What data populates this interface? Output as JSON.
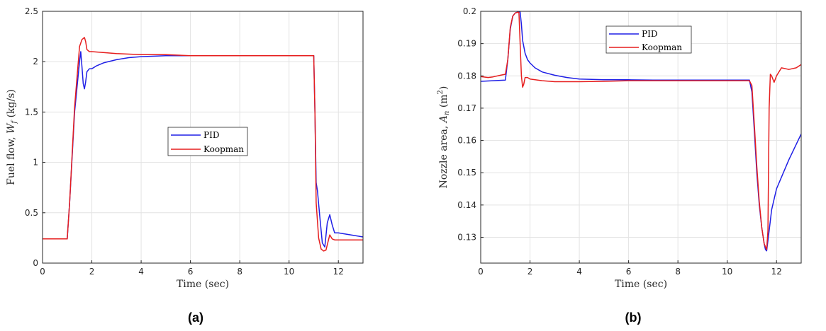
{
  "chart_data": [
    {
      "type": "line",
      "caption": "(a)",
      "xlabel": "Time (sec)",
      "ylabel": "Fuel flow, W_f (kg/s)",
      "ylabel_main": "Fuel flow, ",
      "ylabel_var": "W",
      "ylabel_sub": "f",
      "ylabel_unit": " (kg/s)",
      "xlim": [
        0,
        13
      ],
      "ylim": [
        0,
        2.5
      ],
      "xticks": [
        "0",
        "2",
        "4",
        "6",
        "8",
        "10",
        "12"
      ],
      "yticks": [
        "0",
        "0.5",
        "1",
        "1.5",
        "2",
        "2.5"
      ],
      "grid": true,
      "legend_position": "center",
      "series": [
        {
          "name": "PID",
          "color": "#1f1fe6",
          "x": [
            0,
            1.0,
            1.1,
            1.3,
            1.5,
            1.55,
            1.6,
            1.65,
            1.7,
            1.75,
            1.8,
            1.9,
            2.0,
            2.2,
            2.5,
            3.0,
            3.5,
            4.0,
            5.0,
            6.0,
            7.0,
            8.0,
            9.0,
            10.0,
            11.0,
            11.05,
            11.1,
            11.15,
            11.25,
            11.35,
            11.45,
            11.55,
            11.65,
            11.75,
            11.85,
            12.0,
            12.5,
            13.0
          ],
          "y": [
            0.24,
            0.24,
            0.6,
            1.5,
            2.0,
            2.1,
            1.95,
            1.78,
            1.73,
            1.8,
            1.9,
            1.93,
            1.93,
            1.96,
            1.99,
            2.02,
            2.04,
            2.05,
            2.06,
            2.06,
            2.06,
            2.06,
            2.06,
            2.06,
            2.06,
            1.5,
            0.8,
            0.72,
            0.45,
            0.2,
            0.16,
            0.4,
            0.48,
            0.38,
            0.3,
            0.3,
            0.28,
            0.26
          ]
        },
        {
          "name": "Koopman",
          "color": "#e61e1e",
          "x": [
            0,
            1.0,
            1.1,
            1.3,
            1.5,
            1.6,
            1.7,
            1.75,
            1.8,
            1.9,
            2.0,
            2.5,
            3.0,
            4.0,
            5.0,
            6.0,
            7.0,
            8.0,
            9.0,
            10.0,
            11.0,
            11.05,
            11.1,
            11.2,
            11.3,
            11.4,
            11.5,
            11.6,
            11.65,
            11.75,
            11.85,
            12.0,
            12.5,
            13.0
          ],
          "y": [
            0.24,
            0.24,
            0.6,
            1.55,
            2.15,
            2.22,
            2.24,
            2.2,
            2.12,
            2.1,
            2.1,
            2.09,
            2.08,
            2.07,
            2.07,
            2.06,
            2.06,
            2.06,
            2.06,
            2.06,
            2.06,
            1.5,
            0.6,
            0.25,
            0.14,
            0.12,
            0.13,
            0.23,
            0.28,
            0.24,
            0.23,
            0.23,
            0.23,
            0.23
          ]
        }
      ]
    },
    {
      "type": "line",
      "caption": "(b)",
      "xlabel": "Time (sec)",
      "ylabel": "Nozzle area, A_n (m^2)",
      "ylabel_main": "Nozzle area, ",
      "ylabel_var": "A",
      "ylabel_sub": "n",
      "ylabel_unit": " (m",
      "ylabel_sup": "2",
      "ylabel_close": ")",
      "xlim": [
        0,
        13
      ],
      "ylim": [
        0.122,
        0.2
      ],
      "xticks": [
        "0",
        "2",
        "4",
        "6",
        "8",
        "10",
        "12"
      ],
      "yticks": [
        "0.13",
        "0.14",
        "0.15",
        "0.16",
        "0.17",
        "0.18",
        "0.19",
        "0.2"
      ],
      "grid": true,
      "legend_position": "top",
      "series": [
        {
          "name": "PID",
          "color": "#1f1fe6",
          "x": [
            0,
            0.5,
            1.0,
            1.1,
            1.2,
            1.3,
            1.4,
            1.5,
            1.6,
            1.65,
            1.7,
            1.8,
            1.9,
            2.0,
            2.2,
            2.5,
            3.0,
            3.5,
            4.0,
            5.0,
            6.0,
            7.0,
            8.0,
            9.0,
            10.0,
            10.9,
            11.0,
            11.1,
            11.2,
            11.3,
            11.4,
            11.5,
            11.55,
            11.6,
            11.7,
            11.8,
            12.0,
            12.5,
            13.0
          ],
          "y": [
            0.1783,
            0.1785,
            0.1787,
            0.185,
            0.1945,
            0.1985,
            0.1995,
            0.1998,
            0.1998,
            0.196,
            0.191,
            0.187,
            0.185,
            0.184,
            0.1825,
            0.1812,
            0.1802,
            0.1795,
            0.179,
            0.1788,
            0.1788,
            0.1787,
            0.1787,
            0.1787,
            0.1787,
            0.1787,
            0.175,
            0.163,
            0.15,
            0.14,
            0.133,
            0.128,
            0.1262,
            0.1258,
            0.132,
            0.1385,
            0.145,
            0.154,
            0.162
          ]
        },
        {
          "name": "Koopman",
          "color": "#e61e1e",
          "x": [
            0,
            0.3,
            0.5,
            0.8,
            1.0,
            1.1,
            1.2,
            1.3,
            1.4,
            1.5,
            1.55,
            1.6,
            1.65,
            1.7,
            1.75,
            1.8,
            1.9,
            2.0,
            2.5,
            3.0,
            4.0,
            5.0,
            6.0,
            7.0,
            8.0,
            9.0,
            10.0,
            10.8,
            10.9,
            11.0,
            11.1,
            11.2,
            11.3,
            11.4,
            11.5,
            11.6,
            11.65,
            11.7,
            11.75,
            11.8,
            11.9,
            12.0,
            12.2,
            12.5,
            12.8,
            13.0
          ],
          "y": [
            0.1798,
            0.1795,
            0.1797,
            0.1802,
            0.1805,
            0.185,
            0.195,
            0.1985,
            0.1995,
            0.1997,
            0.1997,
            0.19,
            0.18,
            0.1765,
            0.1775,
            0.1795,
            0.1795,
            0.179,
            0.1785,
            0.1782,
            0.1782,
            0.1783,
            0.1785,
            0.1785,
            0.1785,
            0.1785,
            0.1785,
            0.1785,
            0.1785,
            0.177,
            0.165,
            0.152,
            0.141,
            0.133,
            0.128,
            0.1262,
            0.132,
            0.17,
            0.1805,
            0.18,
            0.178,
            0.18,
            0.1825,
            0.182,
            0.1825,
            0.1835
          ]
        }
      ]
    }
  ]
}
